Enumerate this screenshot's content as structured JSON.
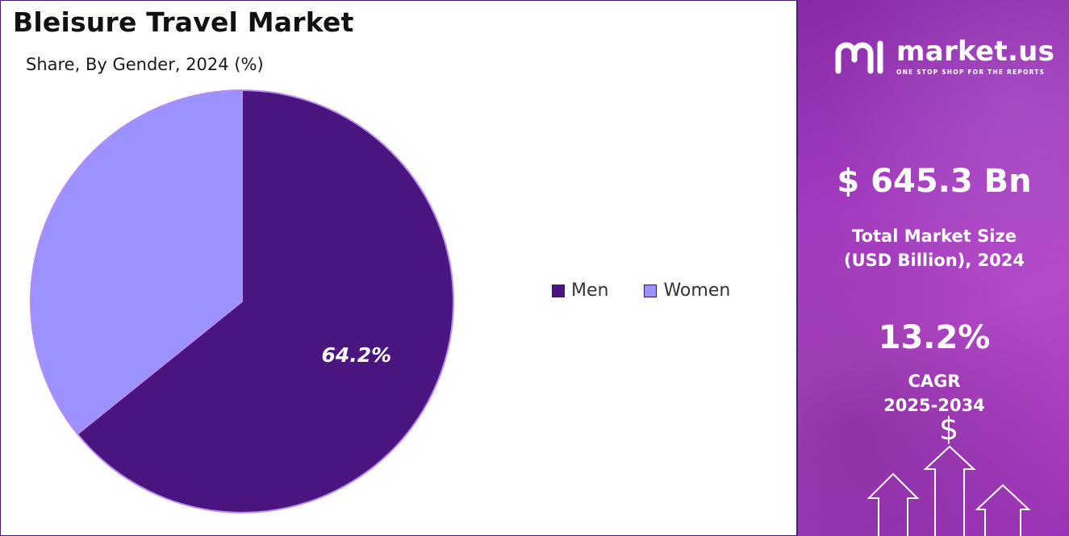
{
  "title": "Bleisure Travel Market",
  "subtitle": "Share, By Gender, 2024 (%)",
  "chart_data": {
    "type": "pie",
    "title": "Bleisure Travel Market",
    "subtitle": "Share, By Gender, 2024 (%)",
    "categories": [
      "Men",
      "Women"
    ],
    "values": [
      64.2,
      35.8
    ],
    "data_labels": [
      "64.2%",
      ""
    ],
    "colors": [
      "#4b1580",
      "#9b91ff"
    ],
    "legend_position": "right"
  },
  "legend": [
    {
      "label": "Men",
      "color": "#4b1580"
    },
    {
      "label": "Women",
      "color": "#9b91ff"
    }
  ],
  "sidebar": {
    "brand": "market.us",
    "tagline": "ONE STOP SHOP FOR THE REPORTS",
    "market_size_value": "$ 645.3 Bn",
    "market_size_label_1": "Total Market Size",
    "market_size_label_2": "(USD Billion), 2024",
    "cagr_value": "13.2%",
    "cagr_label": "CAGR",
    "cagr_period": "2025-2034",
    "dollar_symbol": "$",
    "icons": [
      "market-us-logo-icon",
      "dollar-icon",
      "up-arrow-icon"
    ]
  }
}
